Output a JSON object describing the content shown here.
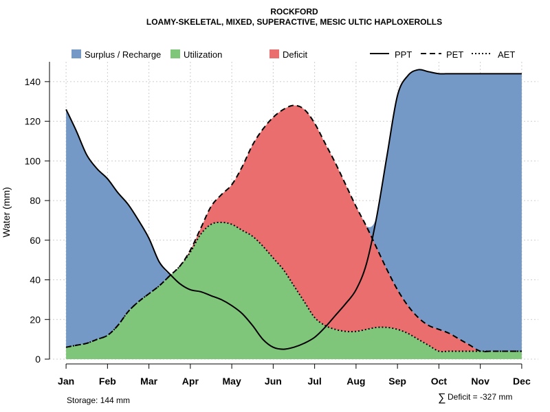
{
  "chart_data": {
    "type": "area",
    "title": "ROCKFORD",
    "subtitle": "LOAMY-SKELETAL, MIXED, SUPERACTIVE, MESIC ULTIC HAPLOXEROLLS",
    "xlabel": "",
    "ylabel": "Water (mm)",
    "categories": [
      "Jan",
      "Feb",
      "Mar",
      "Apr",
      "May",
      "Jun",
      "Jul",
      "Aug",
      "Sep",
      "Oct",
      "Nov",
      "Dec"
    ],
    "ylim": [
      0,
      150
    ],
    "yticks": [
      0,
      20,
      40,
      60,
      80,
      100,
      120,
      140
    ],
    "grid": true,
    "legend_position": "top",
    "x": [
      1,
      1.25,
      1.5,
      1.75,
      2,
      2.25,
      2.5,
      2.75,
      3,
      3.25,
      3.5,
      3.75,
      4,
      4.25,
      4.5,
      4.75,
      5,
      5.25,
      5.5,
      5.75,
      6,
      6.25,
      6.5,
      6.75,
      7,
      7.25,
      7.5,
      7.75,
      8,
      8.25,
      8.5,
      8.75,
      9,
      9.25,
      9.5,
      9.75,
      10,
      10.25,
      10.5,
      10.75,
      11,
      11.25,
      11.5,
      11.75,
      12
    ],
    "series": [
      {
        "name": "PPT",
        "values": [
          126,
          115,
          103,
          96,
          91,
          84,
          78,
          70,
          61,
          49,
          43,
          38,
          35,
          34,
          32,
          30,
          27,
          23,
          17,
          10,
          6,
          5,
          6,
          8,
          11,
          16,
          22,
          28,
          35,
          48,
          72,
          103,
          133,
          143,
          146,
          145,
          144,
          144,
          144,
          144,
          144,
          144,
          144,
          144,
          144
        ]
      },
      {
        "name": "PET",
        "values": [
          6,
          7,
          8,
          10,
          12,
          17,
          24,
          29,
          33,
          37,
          42,
          47,
          55,
          66,
          77,
          83,
          88,
          97,
          108,
          116,
          122,
          126,
          128,
          126,
          119,
          109,
          99,
          88,
          77,
          67,
          56,
          45,
          35,
          27,
          21,
          17,
          15,
          13,
          10,
          7,
          4,
          4,
          4,
          4,
          4
        ]
      },
      {
        "name": "AET",
        "values": [
          6,
          7,
          8,
          10,
          12,
          17,
          24,
          29,
          33,
          37,
          42,
          47,
          54,
          63,
          68,
          69,
          68,
          65,
          62,
          57,
          51,
          45,
          37,
          29,
          21,
          17,
          15,
          14,
          14,
          15,
          16,
          16,
          15,
          13,
          10,
          7,
          4,
          4,
          4,
          4,
          4,
          4,
          4,
          4,
          4
        ]
      }
    ],
    "legend": {
      "surplus": "Surplus / Recharge",
      "utilization": "Utilization",
      "deficit": "Deficit",
      "ppt": "PPT",
      "pet": "PET",
      "aet": "AET"
    },
    "annotations": {
      "storage": "Storage: 144 mm",
      "deficit_symbol": "∑",
      "deficit": "Deficit = -327 mm"
    },
    "colors": {
      "surplus": "#7499C6",
      "utilization": "#7FC57A",
      "deficit": "#EB6E6E",
      "line": "#000000",
      "grid": "#cccccc"
    }
  }
}
